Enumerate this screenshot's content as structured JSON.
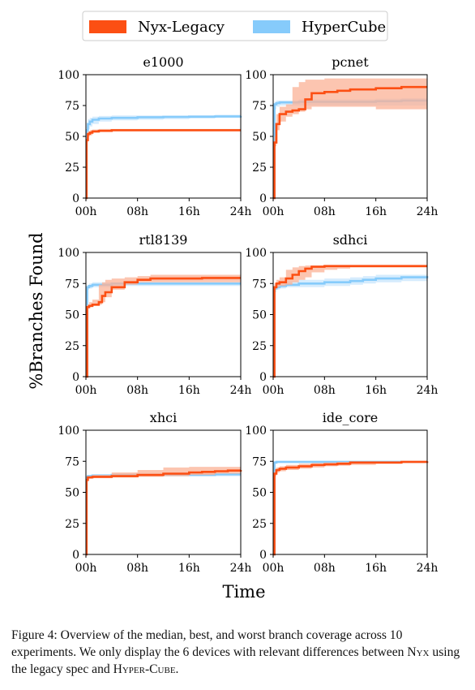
{
  "legend": [
    {
      "label": "Nyx-Legacy",
      "color": "#fc4f13",
      "band": "#fbb196"
    },
    {
      "label": "HyperCube",
      "color": "#86cbfb",
      "band": "#c8e6fc"
    }
  ],
  "ylabel": "%Branches Found",
  "xlabel": "Time",
  "chart_data": [
    {
      "type": "line",
      "title": "e1000",
      "xlabel": "Time",
      "ylabel": "%Branches Found",
      "x_ticks": [
        "00h",
        "08h",
        "16h",
        "24h"
      ],
      "y_ticks": [
        0,
        25,
        50,
        75,
        100
      ],
      "xlim": [
        0,
        24
      ],
      "ylim": [
        0,
        100
      ],
      "series": [
        {
          "name": "Nyx-Legacy",
          "x": [
            0,
            0.1,
            0.3,
            0.6,
            1.0,
            2.0,
            4.0,
            8.0,
            12.0,
            16.0,
            20.0,
            24.0
          ],
          "median": [
            0,
            47,
            52,
            53,
            54,
            54.5,
            55,
            55,
            55,
            55,
            55,
            55
          ],
          "min": [
            0,
            45,
            50,
            51,
            53,
            54,
            54.5,
            54.5,
            54.5,
            54.5,
            54.5,
            54.5
          ],
          "max": [
            0,
            50,
            54,
            55,
            55.5,
            56,
            56,
            56,
            56,
            56,
            56,
            56
          ]
        },
        {
          "name": "HyperCube",
          "x": [
            0,
            0.1,
            0.3,
            0.6,
            1.0,
            2.0,
            4.0,
            8.0,
            12.0,
            16.0,
            20.0,
            24.0
          ],
          "median": [
            0,
            55,
            60,
            62,
            63.5,
            64.5,
            65,
            65.5,
            65.8,
            66,
            66.2,
            66.5
          ],
          "min": [
            0,
            50,
            56,
            58,
            60,
            62,
            63,
            63.5,
            64,
            64.5,
            65,
            65
          ],
          "max": [
            0,
            58,
            64,
            65,
            66,
            66.5,
            67,
            67,
            67,
            67,
            67.5,
            67.5
          ]
        }
      ]
    },
    {
      "type": "line",
      "title": "pcnet",
      "xlabel": "Time",
      "ylabel": "%Branches Found",
      "x_ticks": [
        "00h",
        "08h",
        "16h",
        "24h"
      ],
      "y_ticks": [
        0,
        25,
        50,
        75,
        100
      ],
      "xlim": [
        0,
        24
      ],
      "ylim": [
        0,
        100
      ],
      "series": [
        {
          "name": "Nyx-Legacy",
          "x": [
            0,
            0.2,
            0.5,
            1.0,
            2.0,
            3.0,
            4.0,
            5.0,
            6.0,
            8.0,
            10.0,
            12.0,
            16.0,
            20.0,
            24.0
          ],
          "median": [
            0,
            45,
            60,
            68,
            70,
            71,
            72,
            80,
            85,
            86,
            87,
            88,
            89,
            90,
            90
          ],
          "min": [
            0,
            42,
            55,
            62,
            66,
            68,
            70,
            72,
            74,
            74,
            74,
            74,
            72,
            72,
            72
          ],
          "max": [
            0,
            50,
            68,
            74,
            76,
            90,
            94,
            96,
            96,
            97,
            97,
            97,
            97,
            97,
            97
          ]
        },
        {
          "name": "HyperCube",
          "x": [
            0,
            0.2,
            0.5,
            1.0,
            2.0,
            4.0,
            8.0,
            12.0,
            16.0,
            20.0,
            24.0
          ],
          "median": [
            0,
            76,
            77,
            77.5,
            77.5,
            78,
            78,
            78,
            78.5,
            79,
            79
          ],
          "min": [
            0,
            72,
            74,
            75,
            75,
            75,
            75,
            75,
            75,
            75,
            75
          ],
          "max": [
            0,
            78,
            79,
            79,
            79,
            80,
            80,
            80,
            80.5,
            81,
            81
          ]
        }
      ]
    },
    {
      "type": "line",
      "title": "rtl8139",
      "xlabel": "Time",
      "ylabel": "%Branches Found",
      "x_ticks": [
        "00h",
        "08h",
        "16h",
        "24h"
      ],
      "y_ticks": [
        0,
        25,
        50,
        75,
        100
      ],
      "xlim": [
        0,
        24
      ],
      "ylim": [
        0,
        100
      ],
      "series": [
        {
          "name": "Nyx-Legacy",
          "x": [
            0,
            0.2,
            0.5,
            1.0,
            2.0,
            2.5,
            3.0,
            4.0,
            6.0,
            8.0,
            10.0,
            14.0,
            18.0,
            24.0
          ],
          "median": [
            0,
            56,
            57,
            58,
            60,
            65,
            68,
            72,
            76,
            78,
            79,
            79,
            79.5,
            79.5
          ],
          "min": [
            0,
            55,
            56,
            57,
            58,
            60,
            64,
            70,
            74,
            76,
            76,
            76,
            76,
            76
          ],
          "max": [
            0,
            58,
            60,
            62,
            74,
            76,
            78,
            79,
            80,
            81,
            82,
            82,
            82,
            82
          ]
        },
        {
          "name": "HyperCube",
          "x": [
            0,
            0.2,
            0.5,
            1.0,
            4.0,
            8.0,
            12.0,
            16.0,
            20.0,
            24.0
          ],
          "median": [
            0,
            72,
            73,
            74,
            75,
            75,
            75,
            75,
            75,
            75
          ],
          "min": [
            0,
            70,
            71,
            72,
            73,
            73,
            73,
            73,
            73,
            73
          ],
          "max": [
            0,
            74,
            75,
            76,
            76,
            76,
            76,
            76,
            76,
            76
          ]
        }
      ]
    },
    {
      "type": "line",
      "title": "sdhci",
      "xlabel": "Time",
      "ylabel": "%Branches Found",
      "x_ticks": [
        "00h",
        "08h",
        "16h",
        "24h"
      ],
      "y_ticks": [
        0,
        25,
        50,
        75,
        100
      ],
      "xlim": [
        0,
        24
      ],
      "ylim": [
        0,
        100
      ],
      "series": [
        {
          "name": "Nyx-Legacy",
          "x": [
            0,
            0.2,
            0.5,
            1.0,
            2.0,
            3.0,
            4.0,
            5.0,
            6.0,
            8.0,
            10.0,
            12.0,
            16.0,
            20.0,
            24.0
          ],
          "median": [
            0,
            72,
            75,
            76,
            79,
            82,
            85,
            87,
            88.5,
            89,
            89,
            89,
            89,
            89,
            89
          ],
          "min": [
            0,
            70,
            72,
            73,
            74,
            76,
            78,
            80,
            84,
            86,
            87,
            88,
            88,
            88,
            88
          ],
          "max": [
            0,
            75,
            78,
            80,
            86,
            88,
            89,
            89.5,
            89.5,
            90,
            90,
            90,
            90,
            90,
            90
          ]
        },
        {
          "name": "HyperCube",
          "x": [
            0,
            0.2,
            0.5,
            1.0,
            2.0,
            4.0,
            8.0,
            12.0,
            14.0,
            16.0,
            20.0,
            24.0
          ],
          "median": [
            0,
            71,
            72,
            73,
            74,
            75,
            76,
            77,
            78,
            79,
            80,
            81
          ],
          "min": [
            0,
            68,
            70,
            71,
            72,
            72,
            73,
            74,
            75,
            76,
            77,
            78
          ],
          "max": [
            0,
            74,
            75,
            76,
            77,
            78,
            79,
            80,
            81,
            82,
            82,
            83
          ]
        }
      ]
    },
    {
      "type": "line",
      "title": "xhci",
      "xlabel": "Time",
      "ylabel": "%Branches Found",
      "x_ticks": [
        "00h",
        "08h",
        "16h",
        "24h"
      ],
      "y_ticks": [
        0,
        25,
        50,
        75,
        100
      ],
      "xlim": [
        0,
        24
      ],
      "ylim": [
        0,
        100
      ],
      "series": [
        {
          "name": "Nyx-Legacy",
          "x": [
            0,
            0.1,
            0.3,
            1.0,
            4.0,
            8.0,
            12.0,
            16.0,
            18.0,
            20.0,
            22.0,
            24.0
          ],
          "median": [
            0,
            60,
            62,
            62.5,
            63,
            64,
            65,
            66,
            66.5,
            67,
            67.5,
            68
          ],
          "min": [
            0,
            59,
            61,
            61.5,
            62,
            62.5,
            63,
            64,
            64,
            65,
            65,
            65
          ],
          "max": [
            0,
            62,
            63,
            64,
            66,
            68,
            70,
            70.5,
            70.5,
            70.5,
            70.5,
            70.5
          ]
        },
        {
          "name": "HyperCube",
          "x": [
            0,
            0.1,
            0.3,
            1.0,
            4.0,
            8.0,
            12.0,
            16.0,
            20.0,
            24.0
          ],
          "median": [
            0,
            62,
            63,
            63.5,
            64,
            64,
            64,
            64,
            64.5,
            64.5
          ],
          "min": [
            0,
            61,
            62,
            62.5,
            63,
            63,
            63,
            63,
            63,
            63
          ],
          "max": [
            0,
            63,
            64,
            64.5,
            65,
            65,
            65,
            65,
            65.5,
            65.5
          ]
        }
      ]
    },
    {
      "type": "line",
      "title": "ide_core",
      "xlabel": "Time",
      "ylabel": "%Branches Found",
      "x_ticks": [
        "00h",
        "08h",
        "16h",
        "24h"
      ],
      "y_ticks": [
        0,
        25,
        50,
        75,
        100
      ],
      "xlim": [
        0,
        24
      ],
      "ylim": [
        0,
        100
      ],
      "series": [
        {
          "name": "Nyx-Legacy",
          "x": [
            0,
            0.2,
            0.5,
            1.0,
            2.0,
            4.0,
            6.0,
            8.0,
            10.0,
            12.0,
            16.0,
            20.0,
            24.0
          ],
          "median": [
            0,
            65,
            68,
            69,
            70,
            71,
            72,
            72.5,
            73,
            74,
            74,
            74.5,
            75
          ],
          "min": [
            0,
            63,
            66,
            67,
            68,
            69,
            70,
            71,
            71.5,
            72,
            73,
            73.5,
            74
          ],
          "max": [
            0,
            67,
            70,
            71,
            72,
            73,
            73.5,
            74,
            74.5,
            75,
            75,
            75.5,
            76
          ]
        },
        {
          "name": "HyperCube",
          "x": [
            0,
            0.2,
            0.5,
            1.0,
            4.0,
            8.0,
            12.0,
            16.0,
            20.0,
            24.0
          ],
          "median": [
            0,
            74,
            74.5,
            74.5,
            74.5,
            74.5,
            74.5,
            74.5,
            74.5,
            74.5
          ],
          "min": [
            0,
            73,
            73.5,
            73.5,
            73.5,
            73.5,
            73.5,
            73.5,
            73.5,
            73.5
          ],
          "max": [
            0,
            75,
            75.5,
            75.5,
            75.5,
            75.5,
            75.5,
            75.5,
            75.5,
            75.5
          ]
        }
      ]
    }
  ],
  "caption": {
    "part1": "Figure 4: Overview of the median, best, and worst branch coverage across 10 experiments. We only display the 6 devices with relevant differences between ",
    "nyx": "Nyx",
    "part2": " using the legacy spec and ",
    "hypercube": "Hyper-Cube",
    "part3": "."
  }
}
